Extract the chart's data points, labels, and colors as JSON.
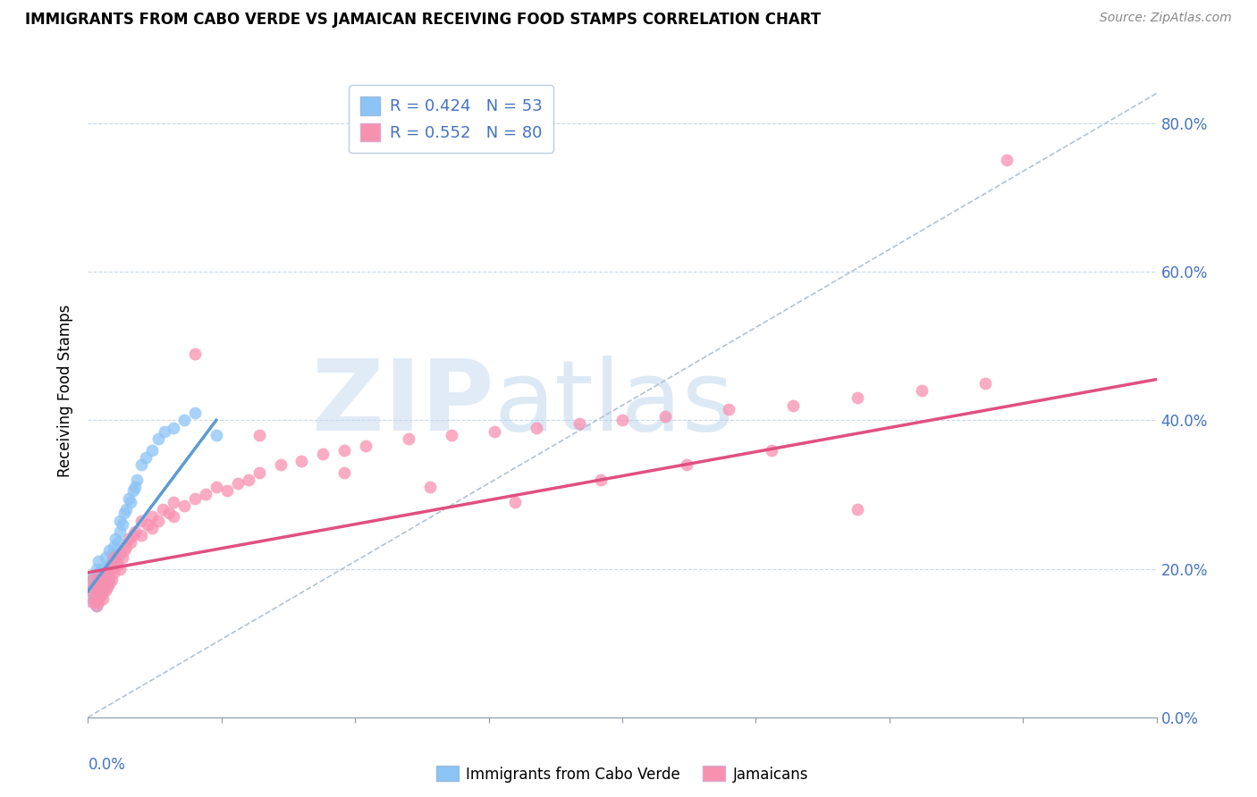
{
  "title": "IMMIGRANTS FROM CABO VERDE VS JAMAICAN RECEIVING FOOD STAMPS CORRELATION CHART",
  "source": "Source: ZipAtlas.com",
  "ylabel": "Receiving Food Stamps",
  "xlim": [
    0.0,
    0.5
  ],
  "ylim": [
    0.0,
    0.88
  ],
  "ytick_values": [
    0.0,
    0.2,
    0.4,
    0.6,
    0.8
  ],
  "legend_R1": "R = 0.424",
  "legend_N1": "N = 53",
  "legend_R2": "R = 0.552",
  "legend_N2": "N = 80",
  "color_blue": "#8BC4F5",
  "color_pink": "#F890B0",
  "color_blue_line": "#5B9BD5",
  "color_pink_line": "#E05080",
  "color_diag": "#AABCCC",
  "color_axis_text": "#4472C4",
  "cabo_verde_x": [
    0.001,
    0.002,
    0.002,
    0.003,
    0.003,
    0.003,
    0.004,
    0.004,
    0.004,
    0.004,
    0.005,
    0.005,
    0.005,
    0.005,
    0.006,
    0.006,
    0.006,
    0.007,
    0.007,
    0.008,
    0.008,
    0.008,
    0.009,
    0.009,
    0.01,
    0.01,
    0.01,
    0.011,
    0.011,
    0.012,
    0.012,
    0.013,
    0.013,
    0.014,
    0.015,
    0.015,
    0.016,
    0.017,
    0.018,
    0.019,
    0.02,
    0.021,
    0.022,
    0.023,
    0.025,
    0.027,
    0.03,
    0.033,
    0.036,
    0.04,
    0.045,
    0.05,
    0.06
  ],
  "cabo_verde_y": [
    0.175,
    0.16,
    0.19,
    0.155,
    0.17,
    0.185,
    0.15,
    0.165,
    0.18,
    0.2,
    0.16,
    0.175,
    0.195,
    0.21,
    0.165,
    0.18,
    0.2,
    0.17,
    0.19,
    0.175,
    0.195,
    0.215,
    0.18,
    0.2,
    0.185,
    0.205,
    0.225,
    0.2,
    0.22,
    0.215,
    0.23,
    0.22,
    0.24,
    0.235,
    0.25,
    0.265,
    0.26,
    0.275,
    0.28,
    0.295,
    0.29,
    0.305,
    0.31,
    0.32,
    0.34,
    0.35,
    0.36,
    0.375,
    0.385,
    0.39,
    0.4,
    0.41,
    0.38
  ],
  "jamaican_x": [
    0.001,
    0.002,
    0.002,
    0.003,
    0.003,
    0.004,
    0.004,
    0.005,
    0.005,
    0.005,
    0.006,
    0.006,
    0.007,
    0.007,
    0.008,
    0.008,
    0.009,
    0.009,
    0.01,
    0.01,
    0.011,
    0.011,
    0.012,
    0.012,
    0.013,
    0.014,
    0.015,
    0.015,
    0.016,
    0.017,
    0.018,
    0.019,
    0.02,
    0.021,
    0.022,
    0.025,
    0.025,
    0.028,
    0.03,
    0.03,
    0.033,
    0.035,
    0.038,
    0.04,
    0.04,
    0.045,
    0.05,
    0.055,
    0.06,
    0.065,
    0.07,
    0.075,
    0.08,
    0.09,
    0.1,
    0.11,
    0.12,
    0.13,
    0.15,
    0.17,
    0.19,
    0.21,
    0.23,
    0.25,
    0.27,
    0.3,
    0.33,
    0.36,
    0.39,
    0.42,
    0.05,
    0.08,
    0.12,
    0.16,
    0.2,
    0.24,
    0.28,
    0.32,
    0.36,
    0.43
  ],
  "jamaican_y": [
    0.17,
    0.155,
    0.185,
    0.16,
    0.175,
    0.15,
    0.18,
    0.155,
    0.17,
    0.19,
    0.165,
    0.18,
    0.16,
    0.185,
    0.17,
    0.19,
    0.175,
    0.195,
    0.18,
    0.2,
    0.185,
    0.205,
    0.195,
    0.215,
    0.21,
    0.205,
    0.2,
    0.22,
    0.215,
    0.225,
    0.23,
    0.24,
    0.235,
    0.245,
    0.25,
    0.245,
    0.265,
    0.26,
    0.255,
    0.27,
    0.265,
    0.28,
    0.275,
    0.27,
    0.29,
    0.285,
    0.295,
    0.3,
    0.31,
    0.305,
    0.315,
    0.32,
    0.33,
    0.34,
    0.345,
    0.355,
    0.36,
    0.365,
    0.375,
    0.38,
    0.385,
    0.39,
    0.395,
    0.4,
    0.405,
    0.415,
    0.42,
    0.43,
    0.44,
    0.45,
    0.49,
    0.38,
    0.33,
    0.31,
    0.29,
    0.32,
    0.34,
    0.36,
    0.28,
    0.75
  ]
}
